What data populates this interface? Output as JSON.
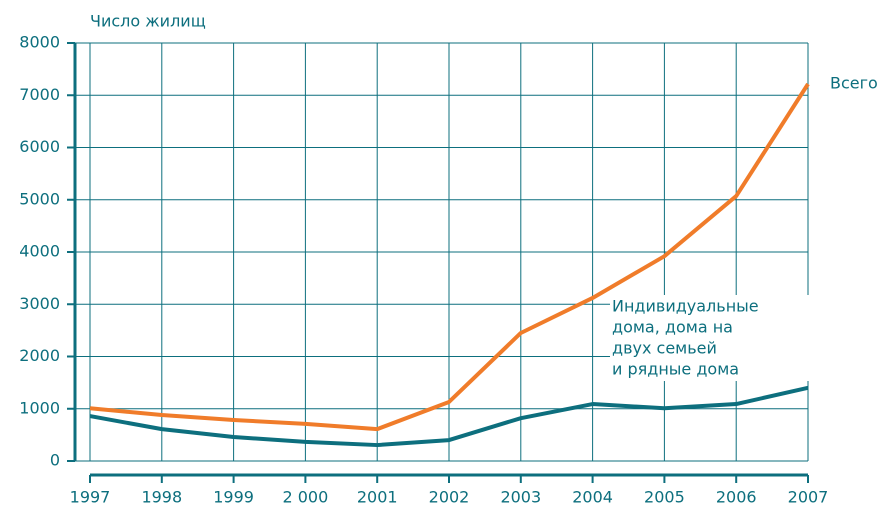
{
  "chart_data": {
    "type": "line",
    "y_label": "Число жилищ",
    "categories": [
      "1997",
      "1998",
      "1999",
      "2 000",
      "2001",
      "2002",
      "2003",
      "2004",
      "2005",
      "2006",
      "2007"
    ],
    "series": [
      {
        "name": [
          "Всего"
        ],
        "color": "#f07c2a",
        "values": [
          1010,
          880,
          785,
          710,
          610,
          1130,
          2450,
          3120,
          3920,
          5070,
          7215
        ]
      },
      {
        "name": [
          "Индивидуальные",
          "дома, дома на",
          "двух семьей",
          "и рядные дома"
        ],
        "color": "#0d6f7e",
        "values": [
          860,
          610,
          460,
          365,
          305,
          400,
          820,
          1090,
          1010,
          1090,
          1400
        ]
      }
    ],
    "ylim": [
      0,
      8000
    ],
    "yticks": [
      0,
      1000,
      2000,
      3000,
      4000,
      5000,
      6000,
      7000,
      8000
    ],
    "grid": true,
    "axis_color": "#0d6f7e"
  }
}
